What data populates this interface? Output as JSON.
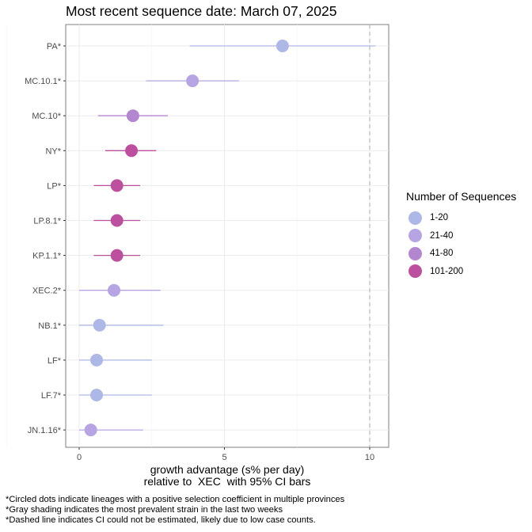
{
  "title": "Most recent sequence date: March 07, 2025",
  "chart_data": {
    "type": "scatter",
    "subtype": "point-range (dot with horizontal CI bars)",
    "title": "Most recent sequence date: March 07, 2025",
    "xlabel_line1": "growth advantage (s% per day)",
    "xlabel_line2": "relative to  XEC  with 95% CI bars",
    "ylabel": "",
    "xlim": [
      -0.5,
      10.7
    ],
    "xticks": [
      0,
      5,
      10
    ],
    "grid": true,
    "reference_line": {
      "x": 10,
      "style": "dashed",
      "color": "#bdbdbd"
    },
    "legend": {
      "title": "Number of Sequences",
      "position": "right",
      "items": [
        {
          "label": "1-20",
          "color": "#aeb8e6"
        },
        {
          "label": "21-40",
          "color": "#b6a4e3"
        },
        {
          "label": "41-80",
          "color": "#b387d0"
        },
        {
          "label": "101-200",
          "color": "#bc509e"
        }
      ]
    },
    "categories": [
      "PA*",
      "MC.10.1*",
      "MC.10*",
      "NY*",
      "LP*",
      "LP.8.1*",
      "KP.1.1*",
      "XEC.2*",
      "NB.1*",
      "LF*",
      "LF.7*",
      "JN.1.16*"
    ],
    "points": [
      {
        "label": "PA*",
        "value": 7.0,
        "low": 3.8,
        "high": 10.2,
        "group": "1-20"
      },
      {
        "label": "MC.10.1*",
        "value": 3.9,
        "low": 2.3,
        "high": 5.5,
        "group": "21-40"
      },
      {
        "label": "MC.10*",
        "value": 1.85,
        "low": 0.65,
        "high": 3.05,
        "group": "41-80"
      },
      {
        "label": "NY*",
        "value": 1.8,
        "low": 0.9,
        "high": 2.65,
        "group": "101-200"
      },
      {
        "label": "LP*",
        "value": 1.3,
        "low": 0.5,
        "high": 2.1,
        "group": "101-200"
      },
      {
        "label": "LP.8.1*",
        "value": 1.3,
        "low": 0.5,
        "high": 2.1,
        "group": "101-200"
      },
      {
        "label": "KP.1.1*",
        "value": 1.3,
        "low": 0.5,
        "high": 2.1,
        "group": "101-200"
      },
      {
        "label": "XEC.2*",
        "value": 1.2,
        "low": 0.0,
        "high": 2.8,
        "group": "21-40"
      },
      {
        "label": "NB.1*",
        "value": 0.7,
        "low": 0.0,
        "high": 2.9,
        "group": "1-20"
      },
      {
        "label": "LF*",
        "value": 0.6,
        "low": 0.0,
        "high": 2.5,
        "group": "1-20"
      },
      {
        "label": "LF.7*",
        "value": 0.6,
        "low": 0.0,
        "high": 2.5,
        "group": "1-20"
      },
      {
        "label": "JN.1.16*",
        "value": 0.4,
        "low": 0.0,
        "high": 2.2,
        "group": "21-40"
      }
    ]
  },
  "footnotes": [
    "*Circled dots indicate lineages with a positive selection coefficient in multiple provinces",
    "*Gray shading indicates the most prevalent strain in the last two weeks",
    "*Dashed line indicates CI could not be estimated, likely due to low case counts."
  ]
}
